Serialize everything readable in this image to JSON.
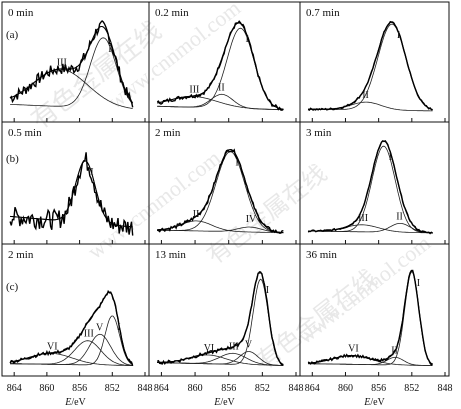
{
  "figure": {
    "row_labels": [
      "(a)",
      "(b)",
      "(c)"
    ],
    "tick_labels": [
      "864",
      "860",
      "856",
      "852",
      "848"
    ],
    "xlabel_italic": "E",
    "xlabel_unit": "/eV",
    "watermark_cn": "有色金属在线",
    "watermark_url": "www.cnnmol.com"
  },
  "chart_data": [
    {
      "type": "line",
      "panel": "a1",
      "time_label": "0 min",
      "xlabel": "E/eV",
      "xlim": [
        865,
        848
      ],
      "reversed_x": true,
      "series": [
        {
          "name": "I",
          "kind": "fit",
          "center": 853.1,
          "height": 0.72,
          "width": 1.6
        },
        {
          "name": "III",
          "kind": "fit",
          "center": 858.3,
          "height": 0.38,
          "width": 3.3
        }
      ],
      "noise": 0.06,
      "baseline": [
        0.1,
        0.04
      ],
      "peak_labels": [
        "I",
        "III"
      ]
    },
    {
      "type": "line",
      "panel": "a2",
      "time_label": "0.2 min",
      "xlabel": "E/eV",
      "xlim": [
        865,
        848
      ],
      "reversed_x": true,
      "series": [
        {
          "name": "I",
          "kind": "fit",
          "center": 854.6,
          "height": 0.82,
          "width": 1.6
        },
        {
          "name": "II",
          "kind": "fit",
          "center": 856.8,
          "height": 0.14,
          "width": 1.3
        },
        {
          "name": "III",
          "kind": "fit",
          "center": 860.2,
          "height": 0.11,
          "width": 2.8
        }
      ],
      "noise": 0.02,
      "baseline": [
        0.08,
        0.04
      ],
      "peak_labels": [
        "I",
        "II",
        "III"
      ]
    },
    {
      "type": "line",
      "panel": "a3",
      "time_label": "0.7 min",
      "xlabel": "E/eV",
      "xlim": [
        865,
        848
      ],
      "reversed_x": true,
      "series": [
        {
          "name": "I",
          "kind": "fit",
          "center": 854.4,
          "height": 0.88,
          "width": 1.7
        },
        {
          "name": "II",
          "kind": "fit",
          "center": 857.5,
          "height": 0.08,
          "width": 1.8
        }
      ],
      "noise": 0.01,
      "baseline": [
        0.05,
        0.03
      ],
      "peak_labels": [
        "I",
        "II"
      ]
    },
    {
      "type": "line",
      "panel": "b1",
      "time_label": "0.5 min",
      "xlabel": "E/eV",
      "xlim": [
        865,
        848
      ],
      "reversed_x": true,
      "series": [
        {
          "name": "I",
          "kind": "fit",
          "center": 855.3,
          "height": 0.62,
          "width": 1.2
        }
      ],
      "noise": 0.1,
      "baseline": [
        0.2,
        0.08
      ],
      "peak_labels": [
        "I"
      ]
    },
    {
      "type": "line",
      "panel": "b2",
      "time_label": "2 min",
      "xlabel": "E/eV",
      "xlim": [
        865,
        848
      ],
      "reversed_x": true,
      "series": [
        {
          "name": "I",
          "kind": "fit",
          "center": 855.8,
          "height": 0.8,
          "width": 1.7
        },
        {
          "name": "II",
          "kind": "fit",
          "center": 859.8,
          "height": 0.1,
          "width": 1.8
        },
        {
          "name": "IV",
          "kind": "fit",
          "center": 853.5,
          "height": 0.05,
          "width": 1.4
        }
      ],
      "noise": 0.02,
      "baseline": [
        0.06,
        0.03
      ],
      "peak_labels": [
        "I",
        "II",
        "IV"
      ]
    },
    {
      "type": "line",
      "panel": "b3",
      "time_label": "3 min",
      "xlabel": "E/eV",
      "xlim": [
        865,
        848
      ],
      "reversed_x": true,
      "series": [
        {
          "name": "I",
          "kind": "fit",
          "center": 855.4,
          "height": 0.86,
          "width": 1.4
        },
        {
          "name": "II",
          "kind": "fit",
          "center": 853.4,
          "height": 0.09,
          "width": 1.2
        },
        {
          "name": "III",
          "kind": "fit",
          "center": 858.0,
          "height": 0.07,
          "width": 2.0
        }
      ],
      "noise": 0.01,
      "baseline": [
        0.05,
        0.03
      ],
      "peak_labels": [
        "I",
        "II",
        "III"
      ]
    },
    {
      "type": "line",
      "panel": "c1",
      "time_label": "2 min",
      "xlabel": "E/eV",
      "xlim": [
        865,
        848
      ],
      "reversed_x": true,
      "series": [
        {
          "name": "I",
          "kind": "fit",
          "center": 852.0,
          "height": 0.45,
          "width": 0.9
        },
        {
          "name": "III",
          "kind": "fit",
          "center": 855.0,
          "height": 0.22,
          "width": 1.6
        },
        {
          "name": "V",
          "kind": "fit",
          "center": 853.5,
          "height": 0.28,
          "width": 1.3
        },
        {
          "name": "VI",
          "kind": "fit",
          "center": 859.5,
          "height": 0.1,
          "width": 2.6
        }
      ],
      "noise": 0.015,
      "baseline": [
        0.04,
        0.02
      ],
      "peak_labels": [
        "I",
        "III",
        "V",
        "VI"
      ]
    },
    {
      "type": "line",
      "panel": "c2",
      "time_label": "13 min",
      "xlabel": "E/eV",
      "xlim": [
        865,
        848
      ],
      "reversed_x": true,
      "series": [
        {
          "name": "I",
          "kind": "fit",
          "center": 852.2,
          "height": 0.78,
          "width": 0.9
        },
        {
          "name": "III",
          "kind": "fit",
          "center": 855.5,
          "height": 0.1,
          "width": 1.6
        },
        {
          "name": "V",
          "kind": "fit",
          "center": 853.6,
          "height": 0.12,
          "width": 1.1
        },
        {
          "name": "VI",
          "kind": "fit",
          "center": 858.5,
          "height": 0.08,
          "width": 2.2
        }
      ],
      "noise": 0.015,
      "baseline": [
        0.05,
        0.02
      ],
      "peak_labels": [
        "I",
        "III",
        "V",
        "VI"
      ]
    },
    {
      "type": "line",
      "panel": "c3",
      "time_label": "36 min",
      "xlabel": "E/eV",
      "xlim": [
        865,
        848
      ],
      "reversed_x": true,
      "series": [
        {
          "name": "I",
          "kind": "fit",
          "center": 852.0,
          "height": 0.85,
          "width": 0.85
        },
        {
          "name": "II",
          "kind": "fit",
          "center": 854.0,
          "height": 0.07,
          "width": 1.0
        },
        {
          "name": "VI",
          "kind": "fit",
          "center": 859.2,
          "height": 0.08,
          "width": 2.3
        }
      ],
      "noise": 0.012,
      "baseline": [
        0.04,
        0.02
      ],
      "peak_labels": [
        "I",
        "II",
        "VI"
      ]
    }
  ]
}
